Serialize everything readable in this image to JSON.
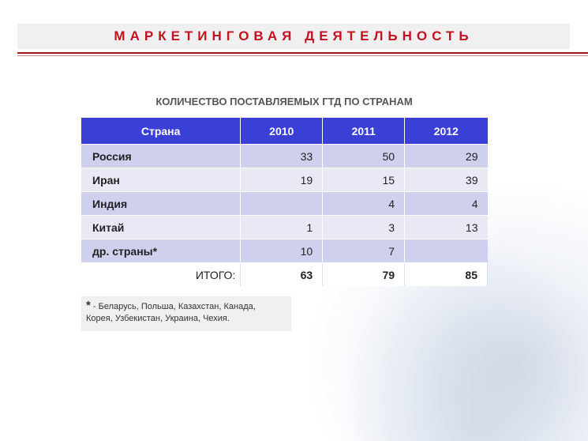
{
  "slide": {
    "title": "МАРКЕТИНГОВАЯ ДЕЯТЕЛЬНОСТЬ",
    "subtitle": "КОЛИЧЕСТВО ПОСТАВЛЯЕМЫХ ГТД ПО СТРАНАМ"
  },
  "table": {
    "headers": [
      "Страна",
      "2010",
      "2011",
      "2012"
    ],
    "rows": [
      {
        "country": "Россия",
        "v2010": "33",
        "v2011": "50",
        "v2012": "29"
      },
      {
        "country": "Иран",
        "v2010": "19",
        "v2011": "15",
        "v2012": "39"
      },
      {
        "country": "Индия",
        "v2010": "",
        "v2011": "4",
        "v2012": "4"
      },
      {
        "country": "Китай",
        "v2010": "1",
        "v2011": "3",
        "v2012": "13"
      },
      {
        "country": "др. страны*",
        "v2010": "10",
        "v2011": "7",
        "v2012": ""
      }
    ],
    "total": {
      "label": "ИТОГО:",
      "v2010": "63",
      "v2011": "79",
      "v2012": "85"
    }
  },
  "footnote": {
    "star": "*",
    "text_line1": "- Беларусь, Польша, Казахстан, Канада,",
    "text_line2": "Корея, Узбекистан, Украина, Чехия."
  }
}
